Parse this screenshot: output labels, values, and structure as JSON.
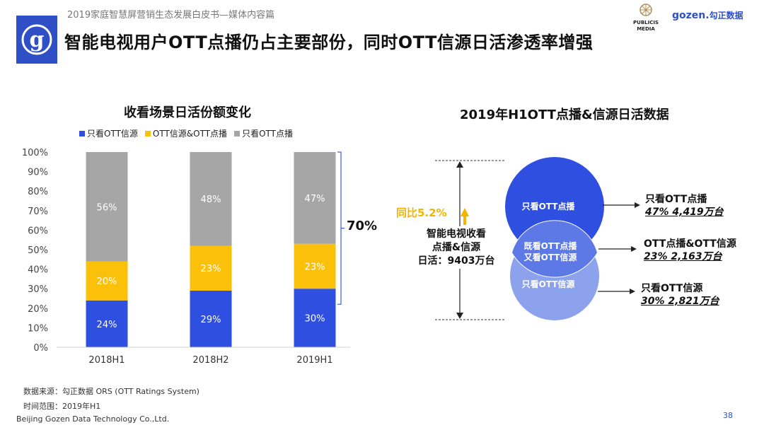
{
  "header": {
    "subtitle": "2019家庭智慧屏营销生态发展白皮书—媒体内容篇",
    "title": "智能电视用户OTT点播仍占主要部份，同时OTT信源日活渗透率增强",
    "logo_letter": "g",
    "publicis_line1": "PUBLICIS",
    "publicis_line2": "MEDIA",
    "gozen_brand": "gozen.",
    "gozen_cn": "勾正数据",
    "accent_color": "#2f4fc6"
  },
  "left_chart_title": "收看场景日活份额变化",
  "bracket_label": "70%",
  "chart_data": {
    "type": "bar",
    "stacked": true,
    "title": "收看场景日活份额变化",
    "categories": [
      "2018H1",
      "2018H2",
      "2019H1"
    ],
    "series": [
      {
        "name": "只看OTT信源",
        "color": "#2f4fe0",
        "values": [
          24,
          29,
          30
        ]
      },
      {
        "name": "OTT信源&OTT点播",
        "color": "#fbc10a",
        "values": [
          20,
          23,
          23
        ]
      },
      {
        "name": "只看OTT点播",
        "color": "#a6a6a6",
        "values": [
          56,
          48,
          47
        ]
      }
    ],
    "ylim": [
      0,
      100
    ],
    "yticks": [
      "0%",
      "10%",
      "20%",
      "30%",
      "40%",
      "50%",
      "60%",
      "70%",
      "80%",
      "90%",
      "100%"
    ],
    "legend_position": "top",
    "grid": false
  },
  "right": {
    "title": "2019年H1OTT点播&信源日活数据",
    "yoy": "同比5.2%",
    "daily_line1": "智能电视收看",
    "daily_line2": "点播&信源",
    "daily_line3": "日活：9403万台",
    "circle_top": "只看OTT点播",
    "circle_mid_line1": "既看OTT点播",
    "circle_mid_line2": "又看OTT信源",
    "circle_bottom": "只看OTT信源",
    "r1_title": "只看OTT点播",
    "r1_value": "47%  4,419万台",
    "r2_title": "OTT点播&OTT信源",
    "r2_value": "23%  2,163万台",
    "r3_title": "只看OTT信源",
    "r3_value": "30%  2,821万台",
    "circle_top_color": "#2f4fe0",
    "circle_bottom_color": "#8da2ec"
  },
  "footer": {
    "source": "数据来源：勾正数据 ORS (OTT Ratings System)",
    "period": "时间范围：2019年H1",
    "company": "Beijing Gozen Data Technology Co.,Ltd.",
    "page": "38"
  }
}
